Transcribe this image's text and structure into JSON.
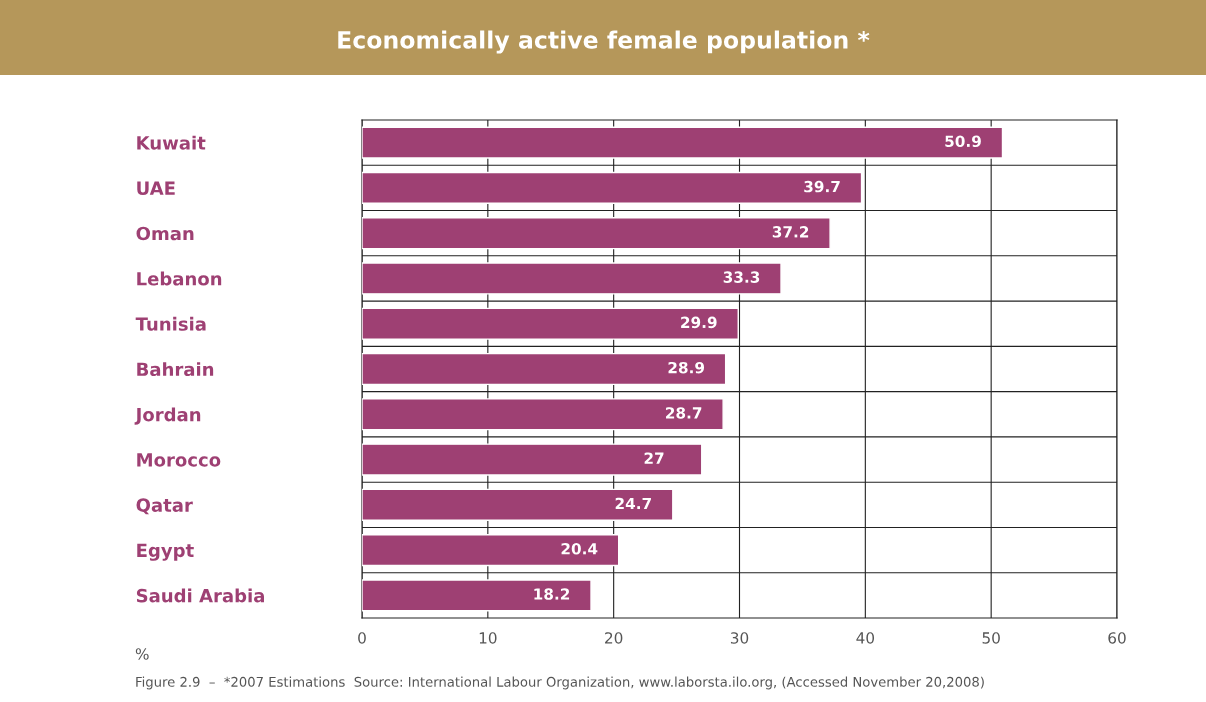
{
  "chart_data": {
    "type": "bar",
    "orientation": "horizontal",
    "title": "Economically active female population *",
    "categories": [
      "Kuwait",
      "UAE",
      "Oman",
      "Lebanon",
      "Tunisia",
      "Bahrain",
      "Jordan",
      "Morocco",
      "Qatar",
      "Egypt",
      "Saudi Arabia"
    ],
    "values": [
      50.9,
      39.7,
      37.2,
      33.3,
      29.9,
      28.9,
      28.7,
      27,
      24.7,
      20.4,
      18.2
    ],
    "color": "#9e4073",
    "xlabel": "%",
    "xlim": [
      0,
      60
    ],
    "xticks": [
      0,
      10,
      20,
      30,
      40,
      50,
      60
    ],
    "grid": true,
    "data_labels": true,
    "annotations": [
      "Figure 2.9  –  *2007 Estimations  Source: International Labour Organization, www.laborsta.ilo.org, (Accessed November 20,2008)"
    ]
  }
}
